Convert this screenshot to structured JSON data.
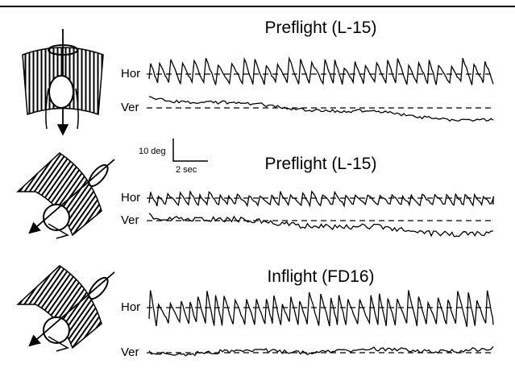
{
  "figure": {
    "panels": [
      {
        "title": "Preflight (L-15)",
        "channels": [
          "Hor",
          "Ver"
        ],
        "stimulus_icon": "vertical-axis-rotating-drum-icon"
      },
      {
        "title": "Preflight (L-15)",
        "channels": [
          "Hor",
          "Ver"
        ],
        "stimulus_icon": "tilted-axis-rotating-drum-icon"
      },
      {
        "title": "Inflight (FD16)",
        "channels": [
          "Hor",
          "Ver"
        ],
        "stimulus_icon": "tilted-axis-rotating-drum-icon"
      }
    ],
    "scale_bar": {
      "vertical_label": "10 deg",
      "horizontal_label": "2 sec"
    }
  }
}
